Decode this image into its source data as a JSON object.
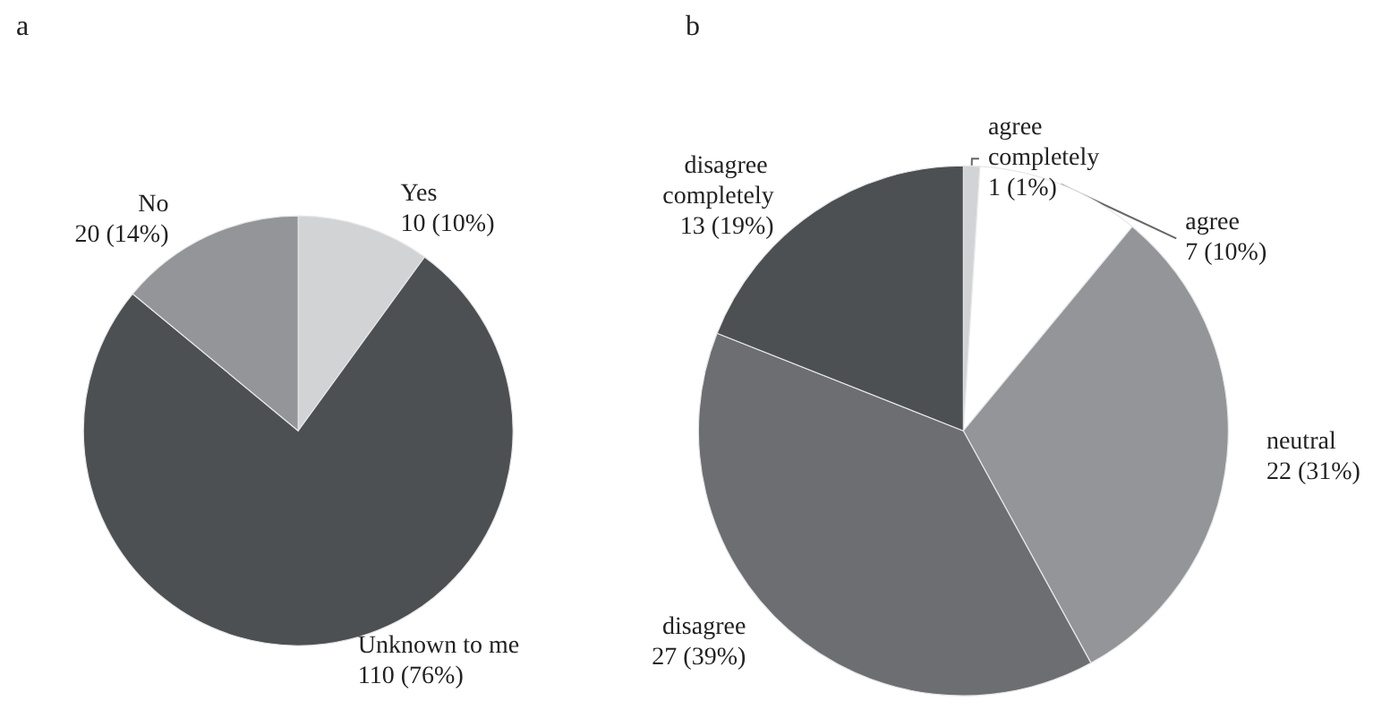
{
  "chart_data": [
    {
      "type": "pie",
      "title": "a",
      "categories": [
        "Yes",
        "Unknown to me",
        "No"
      ],
      "values": [
        10,
        76,
        14
      ],
      "value_labels": [
        "10 (10%)",
        "110 (76%)",
        "20 (14%)"
      ],
      "colors": [
        "#d1d3d4",
        "#4d5052",
        "#939598"
      ]
    },
    {
      "type": "pie",
      "title": "b",
      "categories": [
        "agree completely",
        "agree",
        "neutral",
        "disagree",
        "disagree completely"
      ],
      "values": [
        1,
        10,
        31,
        39,
        19
      ],
      "value_labels": [
        "1 (1%)",
        "7 (10%)",
        "22 (31%)",
        "27 (39%)",
        "13 (19%)"
      ],
      "colors": [
        "#d1d3d4",
        "#ffffff",
        "#939598",
        "#6d6e71",
        "#4d5052"
      ]
    }
  ]
}
